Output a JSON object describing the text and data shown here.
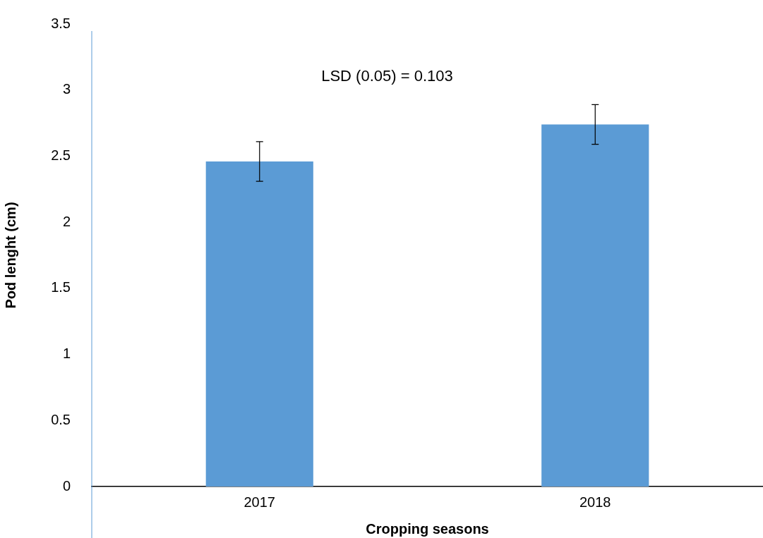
{
  "chart_data": {
    "type": "bar",
    "xlabel": "Cropping seasons",
    "ylabel": "Pod lenght (cm)",
    "annotations": [
      "LSD (0.05) = 0.103"
    ],
    "categories": [
      "2017",
      "2018"
    ],
    "values": [
      2.46,
      2.74
    ],
    "errors": [
      0.15,
      0.15
    ],
    "color": "#5b9bd5",
    "ylim": [
      0,
      3.5
    ],
    "yticks": [
      0,
      0.5,
      1,
      1.5,
      2,
      2.5,
      3,
      3.5
    ]
  }
}
